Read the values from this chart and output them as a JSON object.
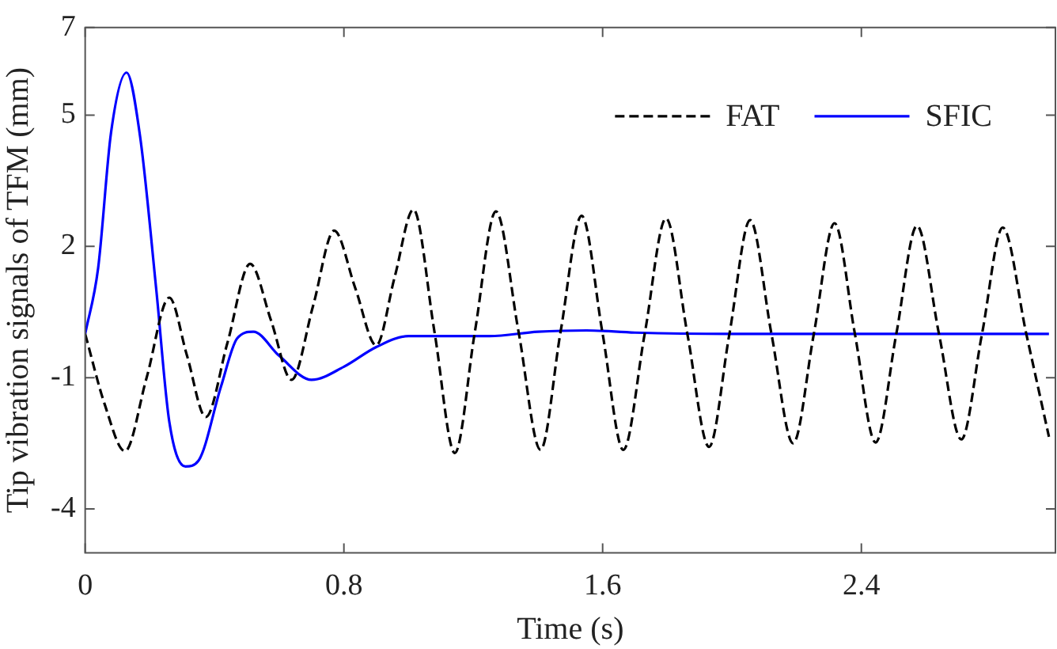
{
  "chart_data": {
    "type": "line",
    "xlabel": "Time (s)",
    "ylabel": "Tip vibration signals of TFM (mm)",
    "xlim": [
      0,
      3
    ],
    "xticks": [
      0,
      0.8,
      1.6,
      2.4
    ],
    "ylim": [
      -5,
      7
    ],
    "yticks": [
      -4,
      -1,
      2,
      5,
      7
    ],
    "grid": false,
    "legend": "top right",
    "marker": "none",
    "series": [
      {
        "name": "FAT",
        "color": "#000000",
        "line_style": "dashed",
        "x": [
          0,
          0.06,
          0.123,
          0.19,
          0.26,
          0.315,
          0.373,
          0.44,
          0.51,
          0.575,
          0.638,
          0.705,
          0.77,
          0.835,
          0.9,
          0.957,
          1.015,
          1.08,
          1.143,
          1.205,
          1.27,
          1.34,
          1.408,
          1.47,
          1.535,
          1.6,
          1.664,
          1.73,
          1.796,
          1.862,
          1.929,
          1.992,
          2.056,
          2.122,
          2.189,
          2.253,
          2.317,
          2.38,
          2.444,
          2.508,
          2.572,
          2.64,
          2.709,
          2.773,
          2.837,
          2.91,
          2.98
        ],
        "values": [
          0,
          -1.6,
          -2.68,
          -1.0,
          0.83,
          -0.5,
          -1.9,
          -0.2,
          1.6,
          0.3,
          -1.05,
          0.65,
          2.36,
          1.05,
          -0.26,
          1.3,
          2.84,
          0.05,
          -2.72,
          0.05,
          2.8,
          0.05,
          -2.65,
          0.05,
          2.7,
          0.0,
          -2.65,
          0.0,
          2.64,
          0.0,
          -2.58,
          0.0,
          2.6,
          0.0,
          -2.5,
          0.0,
          2.53,
          0.0,
          -2.48,
          0.0,
          2.47,
          0.0,
          -2.41,
          0.0,
          2.43,
          0.0,
          -2.35
        ]
      },
      {
        "name": "SFIC",
        "color": "#0000ff",
        "line_style": "solid",
        "x": [
          0,
          0.04,
          0.08,
          0.128,
          0.17,
          0.22,
          0.26,
          0.31,
          0.35,
          0.42,
          0.47,
          0.52,
          0.6,
          0.7,
          0.8,
          0.9,
          1.0,
          1.1,
          1.25,
          1.4,
          1.55,
          1.7,
          2.0,
          2.5,
          2.98
        ],
        "values": [
          0,
          1.5,
          4.6,
          5.97,
          4.5,
          1.0,
          -2.0,
          -3.03,
          -2.9,
          -1.2,
          -0.1,
          0.05,
          -0.5,
          -1.05,
          -0.75,
          -0.3,
          -0.05,
          -0.05,
          -0.05,
          0.05,
          0.08,
          0.03,
          0.0,
          0.0,
          0.0
        ]
      }
    ]
  }
}
